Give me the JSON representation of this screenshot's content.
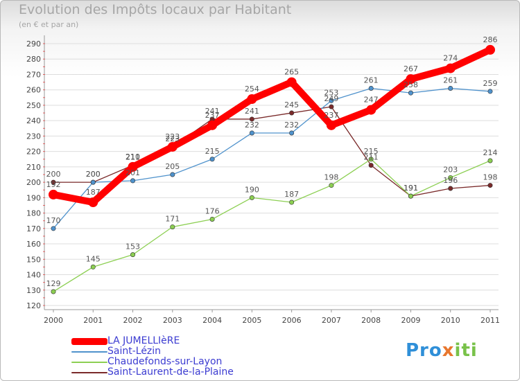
{
  "chart_data": {
    "type": "line",
    "title": "Evolution des Impôts locaux par Habitant",
    "subtitle": "(en € et par an)",
    "xlabel": "",
    "ylabel": "",
    "x": [
      "2000",
      "2001",
      "2002",
      "2003",
      "2004",
      "2005",
      "2006",
      "2007",
      "2008",
      "2009",
      "2010",
      "2011"
    ],
    "ylim": [
      120,
      290
    ],
    "ytick_step": 10,
    "yticks": [
      "120",
      "130",
      "140",
      "150",
      "160",
      "170",
      "180",
      "190",
      "200",
      "210",
      "220",
      "230",
      "240",
      "250",
      "260",
      "270",
      "280",
      "290"
    ],
    "grid": "horizontal",
    "legend_position": "bottom-left",
    "series": [
      {
        "name": "LA JUMELLIèRE",
        "color": "#ff0000",
        "values": [
          192,
          187,
          210,
          223,
          237,
          254,
          265,
          237,
          247,
          267,
          274,
          286
        ],
        "labels": [
          "192",
          "187",
          "210",
          "223",
          "237",
          "254",
          "265",
          "237",
          "247",
          "267",
          "274",
          "286"
        ]
      },
      {
        "name": "Saint-Lézin",
        "color": "#4f92cc",
        "values": [
          170,
          200,
          201,
          205,
          215,
          232,
          232,
          253,
          261,
          258,
          261,
          259
        ],
        "labels": [
          "170",
          "200",
          "201",
          "205",
          "215",
          "232",
          "232",
          "253",
          "261",
          "258",
          "261",
          "259"
        ]
      },
      {
        "name": "Chaudefonds-sur-Layon",
        "color": "#8ccf52",
        "values": [
          129,
          145,
          153,
          171,
          176,
          190,
          187,
          198,
          215,
          191,
          203,
          214
        ],
        "labels": [
          "129",
          "145",
          "153",
          "171",
          "176",
          "190",
          "187",
          "198",
          "215",
          "191",
          "203",
          "214"
        ]
      },
      {
        "name": "Saint-Laurent-de-la-Plaine",
        "color": "#7a2a2a",
        "values": [
          200,
          200,
          211,
          223,
          241,
          241,
          245,
          249,
          211,
          191,
          196,
          198
        ],
        "labels": [
          "200",
          "200",
          "211",
          "223",
          "241",
          "241",
          "245",
          "249",
          "211",
          "191",
          "196",
          "198"
        ]
      }
    ]
  },
  "brand": {
    "part1": "Pro",
    "part2": "x",
    "part3": "iti"
  }
}
